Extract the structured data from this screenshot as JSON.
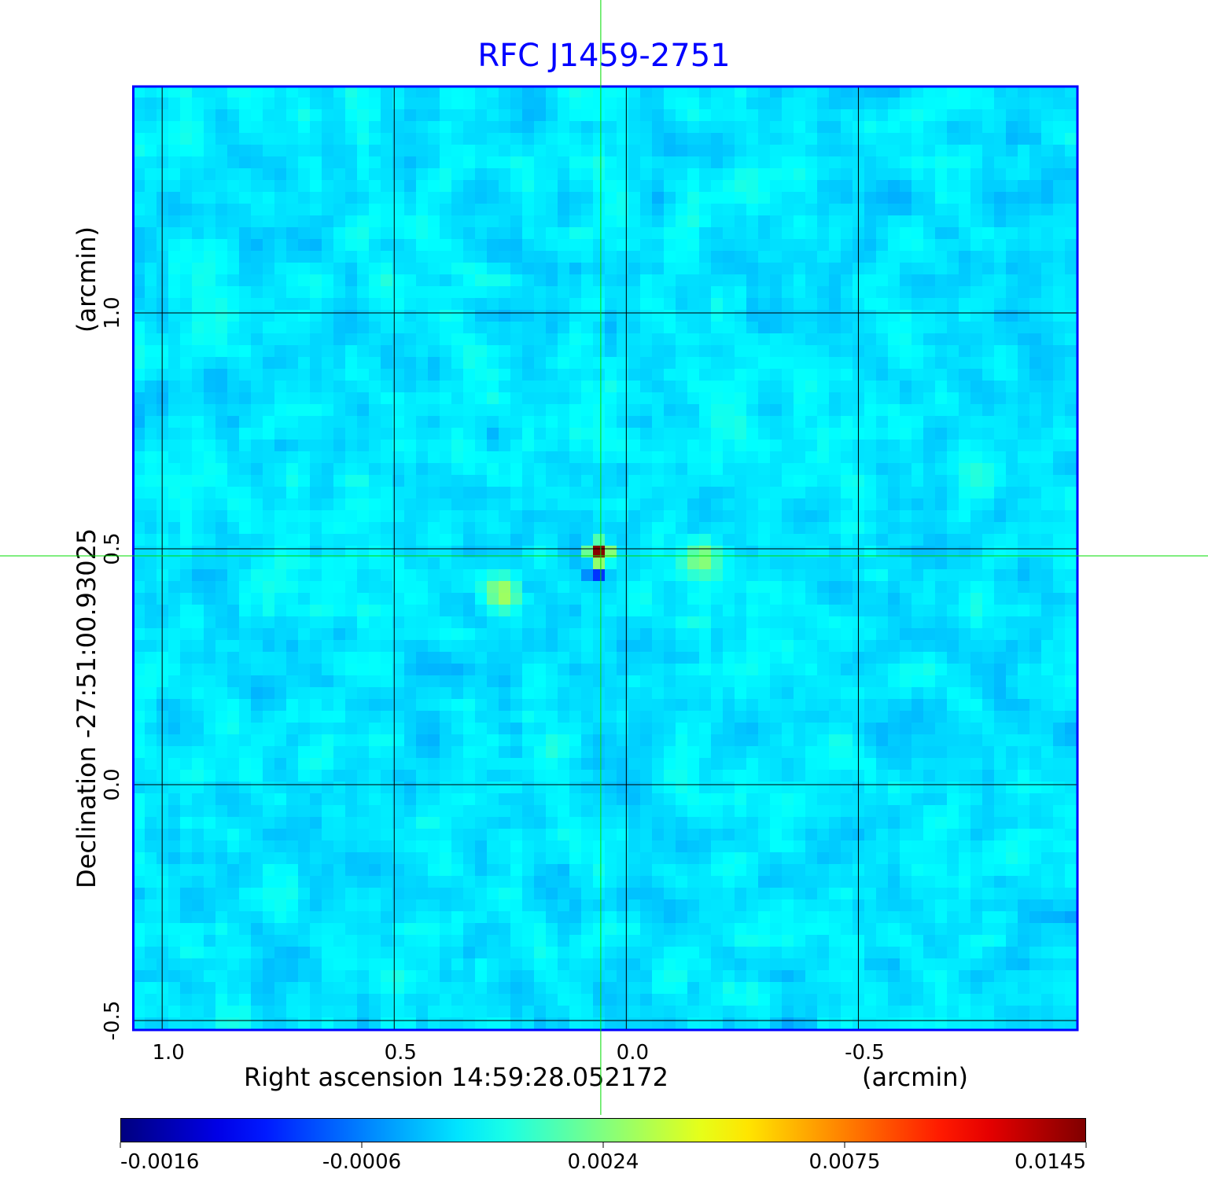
{
  "chart_data": {
    "type": "heatmap",
    "title": "RFC J1459-2751",
    "xlabel": "Right ascension  14:59:28.052172",
    "xunit": "(arcmin)",
    "ylabel": "Declination  -27:51:00.93025",
    "yunit": "(arcmin)",
    "x_ticks": [
      "1.0",
      "0.5",
      "0.0",
      "-0.5"
    ],
    "x_tick_values": [
      1.0,
      0.5,
      0.0,
      -0.5
    ],
    "y_ticks": [
      "1.0",
      "0.5",
      "0.0",
      "-0.5"
    ],
    "y_tick_values": [
      1.0,
      0.5,
      0.0,
      -0.5
    ],
    "xlim": [
      1.063,
      -0.972
    ],
    "ylim": [
      -0.52,
      1.48
    ],
    "grid": true,
    "crosshair": {
      "x": 0.055,
      "y": 0.485,
      "color": "#00dd00"
    },
    "colormap": "jet",
    "colorbar_ticks": [
      "-0.0016",
      "-0.0006",
      "0.0024",
      "0.0075",
      "0.0145"
    ],
    "colorbar_range": [
      -0.0016,
      0.0145
    ],
    "background_level": 0.0006,
    "sources": [
      {
        "x": 0.058,
        "y": 0.49,
        "peak": 0.0145
      },
      {
        "x": 0.068,
        "y": 0.45,
        "peak": -0.0016
      },
      {
        "x": 0.265,
        "y": 0.405,
        "peak": 0.0032
      },
      {
        "x": -0.16,
        "y": 0.48,
        "peak": 0.0028
      }
    ]
  }
}
